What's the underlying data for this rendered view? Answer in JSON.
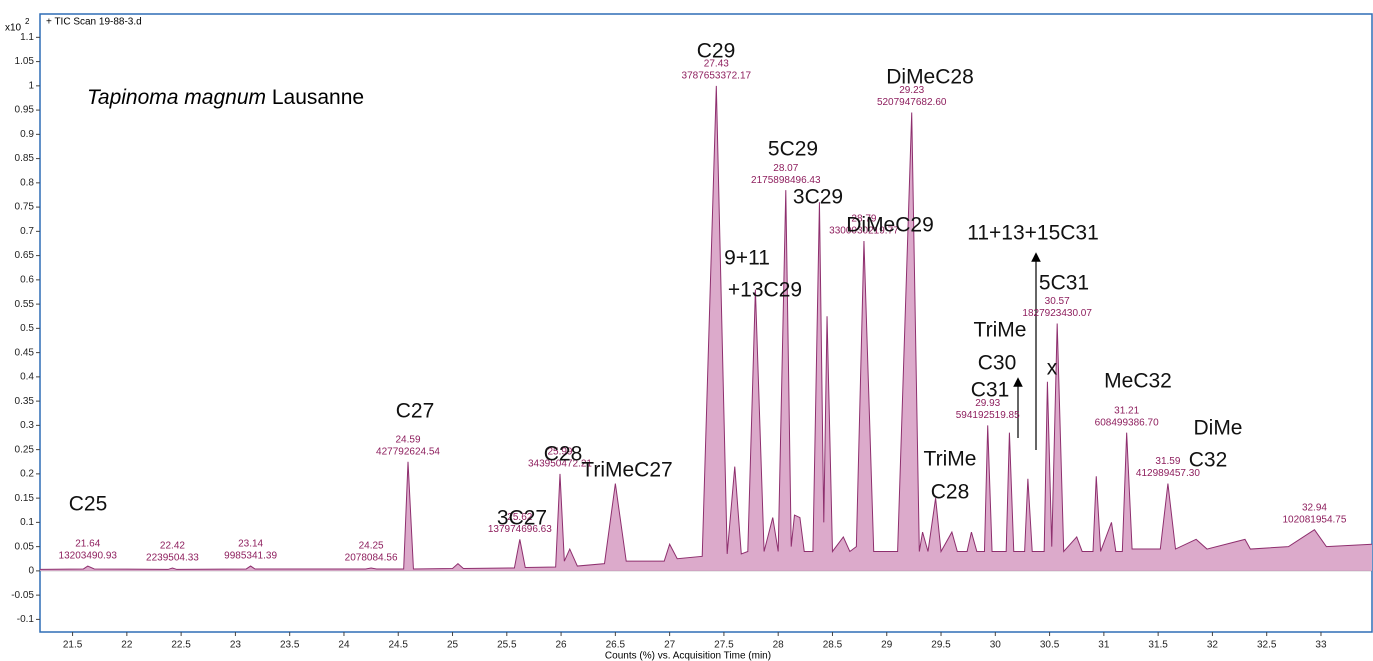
{
  "chart_data": {
    "type": "area",
    "title": "+ TIC Scan 19-88-3.d",
    "y_multiplier": {
      "base": "x10",
      "exponent": "2"
    },
    "x_label": "Counts (%) vs. Acquisition Time (min)",
    "sample_label": {
      "species": "Tapinoma magnum",
      "site": "Lausanne"
    },
    "color": "#8e2f6e",
    "fill_color": "#dcaacb",
    "xlim": [
      21.2,
      33.47
    ],
    "ylim": [
      -0.126,
      1.111
    ],
    "xticks": [
      21.5,
      22,
      22.5,
      23,
      23.5,
      24,
      24.5,
      25,
      25.5,
      26,
      26.5,
      27,
      27.5,
      28,
      28.5,
      29,
      29.5,
      30,
      30.5,
      31,
      31.5,
      32,
      32.5,
      33
    ],
    "yticks": [
      -0.1,
      -0.05,
      0,
      0.05,
      0.1,
      0.15,
      0.2,
      0.25,
      0.3,
      0.35,
      0.4,
      0.45,
      0.5,
      0.55,
      0.6,
      0.65,
      0.7,
      0.75,
      0.8,
      0.85,
      0.9,
      0.95,
      1,
      1.05,
      1.1
    ],
    "x": [
      21.2,
      21.6,
      21.64,
      21.7,
      22.38,
      22.42,
      22.46,
      23.1,
      23.14,
      23.18,
      24.2,
      24.25,
      24.3,
      24.55,
      24.59,
      24.64,
      25.0,
      25.05,
      25.1,
      25.57,
      25.62,
      25.67,
      25.95,
      25.99,
      26.03,
      26.08,
      26.15,
      26.4,
      26.5,
      26.6,
      26.95,
      27.0,
      27.07,
      27.3,
      27.43,
      27.53,
      27.6,
      27.66,
      27.72,
      27.79,
      27.87,
      27.95,
      28.0,
      28.07,
      28.12,
      28.15,
      28.2,
      28.24,
      28.32,
      28.38,
      28.42,
      28.45,
      28.5,
      28.6,
      28.66,
      28.72,
      28.79,
      28.88,
      29.1,
      29.23,
      29.3,
      29.33,
      29.38,
      29.45,
      29.5,
      29.6,
      29.65,
      29.74,
      29.78,
      29.83,
      29.9,
      29.93,
      29.97,
      30.1,
      30.13,
      30.17,
      30.27,
      30.3,
      30.34,
      30.45,
      30.48,
      30.52,
      30.57,
      30.63,
      30.75,
      30.8,
      30.9,
      30.93,
      30.97,
      31.07,
      31.11,
      31.17,
      31.21,
      31.26,
      31.52,
      31.59,
      31.66,
      31.85,
      31.95,
      32.3,
      32.35,
      32.7,
      32.94,
      33.05,
      33.47
    ],
    "values": [
      0.003,
      0.004,
      0.01,
      0.004,
      0.003,
      0.006,
      0.003,
      0.004,
      0.01,
      0.004,
      0.004,
      0.006,
      0.004,
      0.004,
      0.225,
      0.004,
      0.005,
      0.015,
      0.005,
      0.006,
      0.065,
      0.007,
      0.008,
      0.2,
      0.02,
      0.045,
      0.01,
      0.015,
      0.18,
      0.02,
      0.02,
      0.055,
      0.025,
      0.03,
      1.0,
      0.035,
      0.215,
      0.035,
      0.04,
      0.58,
      0.04,
      0.11,
      0.04,
      0.785,
      0.05,
      0.115,
      0.11,
      0.04,
      0.04,
      0.76,
      0.1,
      0.525,
      0.04,
      0.07,
      0.04,
      0.05,
      0.68,
      0.04,
      0.04,
      0.945,
      0.04,
      0.08,
      0.04,
      0.15,
      0.04,
      0.08,
      0.04,
      0.04,
      0.08,
      0.04,
      0.04,
      0.3,
      0.04,
      0.04,
      0.285,
      0.04,
      0.04,
      0.19,
      0.04,
      0.04,
      0.39,
      0.05,
      0.51,
      0.04,
      0.07,
      0.04,
      0.04,
      0.195,
      0.04,
      0.1,
      0.04,
      0.04,
      0.285,
      0.045,
      0.045,
      0.18,
      0.045,
      0.065,
      0.045,
      0.065,
      0.045,
      0.05,
      0.085,
      0.05,
      0.055
    ],
    "peak_labels": [
      {
        "rt": 21.64,
        "area": "13203490.93"
      },
      {
        "rt": 22.42,
        "area": "2239504.33"
      },
      {
        "rt": 23.14,
        "area": "9985341.39"
      },
      {
        "rt": 24.25,
        "area": "2078084.56"
      },
      {
        "rt": 24.59,
        "area": "427792624.54"
      },
      {
        "rt": 25.62,
        "area": "137974696.63"
      },
      {
        "rt": 25.99,
        "area": "343950472.21"
      },
      {
        "rt": 27.43,
        "area": "3787653372.17"
      },
      {
        "rt": 28.07,
        "area": "2175898496.43"
      },
      {
        "rt": 28.79,
        "area": "3300030219.77"
      },
      {
        "rt": 29.23,
        "area": "5207947682.60"
      },
      {
        "rt": 29.93,
        "area": "594192519.85"
      },
      {
        "rt": 30.57,
        "area": "1827923430.07"
      },
      {
        "rt": 31.21,
        "area": "608499386.70"
      },
      {
        "rt": 31.59,
        "area": "412989457.30"
      },
      {
        "rt": 32.94,
        "area": "102081954.75"
      }
    ],
    "compound_labels": [
      "C25",
      "C27",
      "3C27",
      "C28",
      "TriMeC27",
      "C29",
      "9+11",
      "+13C29",
      "5C29",
      "3C29",
      "DiMeC29",
      "DiMeC28",
      "11+13+15C31",
      "TriMe",
      "C30",
      "C31",
      "x",
      "5C31",
      "MeC32",
      "DiMe",
      "C32",
      "TriMe",
      "C28"
    ]
  }
}
